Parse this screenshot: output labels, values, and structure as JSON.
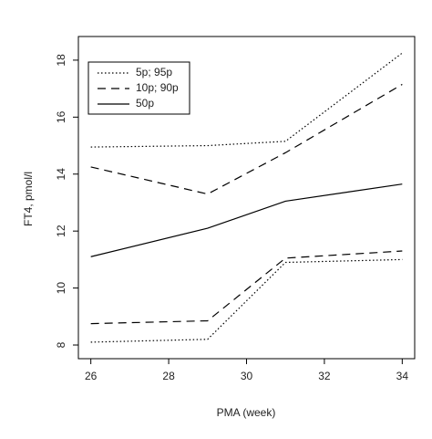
{
  "chart_data": {
    "type": "line",
    "xlabel": "PMA (week)",
    "ylabel": "FT4, pmol/l",
    "x": [
      26,
      29,
      31,
      34
    ],
    "series": [
      {
        "name": "5p; 95p",
        "color": "#000000",
        "dash": "dotted",
        "lines": [
          [
            8.1,
            8.2,
            10.9,
            11.0
          ],
          [
            14.95,
            15.0,
            15.15,
            18.25
          ]
        ]
      },
      {
        "name": "10p; 90p",
        "color": "#000000",
        "dash": "dashed",
        "lines": [
          [
            8.75,
            8.85,
            11.05,
            11.3
          ],
          [
            14.25,
            13.3,
            14.75,
            17.15
          ]
        ]
      },
      {
        "name": "50p",
        "color": "#000000",
        "dash": "solid",
        "lines": [
          [
            11.1,
            12.1,
            13.05,
            13.65
          ]
        ]
      }
    ],
    "xlim": [
      25.68,
      34.32
    ],
    "xticks": [
      26,
      28,
      30,
      32,
      34
    ],
    "ylim": [
      7.52,
      18.83
    ],
    "yticks": [
      8,
      10,
      12,
      14,
      16,
      18
    ],
    "legend": "top-left",
    "grid": false
  }
}
